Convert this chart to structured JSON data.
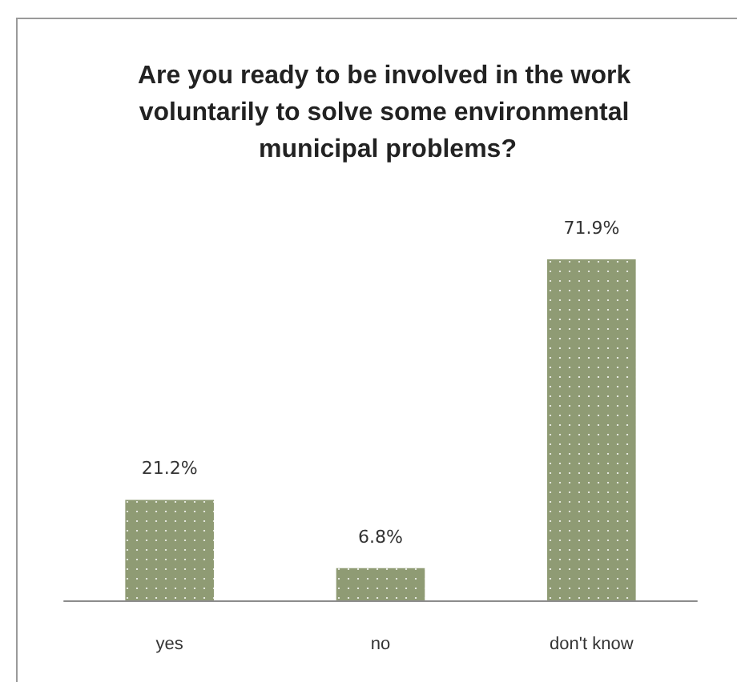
{
  "chart_data": {
    "type": "bar",
    "title": "Are you ready to be involved in the work voluntarily to solve some environmental municipal problems?",
    "categories": [
      "yes",
      "no",
      "don't know"
    ],
    "values": [
      21.2,
      6.8,
      71.9
    ],
    "value_labels": [
      "21.2%",
      "6.8%",
      "71.9%"
    ],
    "color": "#8f9b74"
  }
}
